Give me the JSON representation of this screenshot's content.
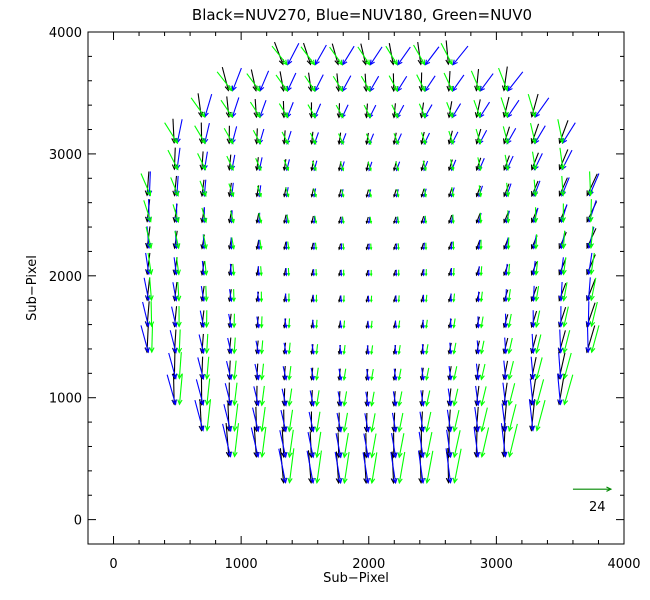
{
  "chart_data": {
    "type": "quiver",
    "title": "Black=NUV270, Blue=NUV180, Green=NUV0",
    "xlabel": "Sub−Pixel",
    "ylabel": "Sub−Pixel",
    "xlim": [
      -200,
      4000
    ],
    "ylim": [
      -200,
      4000
    ],
    "xticks": [
      0,
      1000,
      2000,
      3000,
      4000
    ],
    "yticks": [
      0,
      1000,
      2000,
      3000,
      4000
    ],
    "xtick_labels": [
      "0",
      "1000",
      "2000",
      "3000",
      "4000"
    ],
    "ytick_labels": [
      "0",
      "1000",
      "2000",
      "3000",
      "4000"
    ],
    "grid": false,
    "field_center": [
      2000,
      2000
    ],
    "field_radius": 1900,
    "grid_spacing": 215,
    "series": [
      {
        "name": "NUV270",
        "color": "#000000",
        "rotation_deg": 270
      },
      {
        "name": "NUV180",
        "color": "#0000ff",
        "rotation_deg": 180
      },
      {
        "name": "NUV0",
        "color": "#00ff00",
        "rotation_deg": 0
      }
    ],
    "scale_arrow": {
      "x": 3600,
      "y": 250,
      "length": 24,
      "label": "24"
    }
  }
}
